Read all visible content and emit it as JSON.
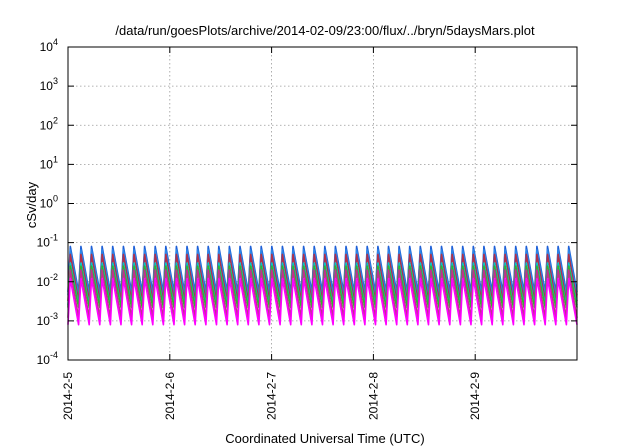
{
  "chart_data": {
    "type": "line",
    "title": "/data/run/goesPlots/archive/2014-02-09/23:00/flux/../bryn/5daysMars.plot",
    "xlabel": "Coordinated Universal Time (UTC)",
    "ylabel": "cSv/day",
    "y_scale": "log",
    "ylim": [
      0.0001,
      10000
    ],
    "y_ticks": [
      {
        "base": "10",
        "exp": "-4"
      },
      {
        "base": "10",
        "exp": "-3"
      },
      {
        "base": "10",
        "exp": "-2"
      },
      {
        "base": "10",
        "exp": "-1"
      },
      {
        "base": "10",
        "exp": "0"
      },
      {
        "base": "10",
        "exp": "1"
      },
      {
        "base": "10",
        "exp": "2"
      },
      {
        "base": "10",
        "exp": "3"
      },
      {
        "base": "10",
        "exp": "4"
      }
    ],
    "x_range_days": [
      "2014-2-5",
      "2014-2-10"
    ],
    "x_ticks": [
      "2014-2-5",
      "2014-2-6",
      "2014-2-7",
      "2014-2-8",
      "2014-2-9"
    ],
    "grid": true,
    "legend": "none",
    "cycles_per_day": 9.6,
    "series": [
      {
        "color": "#1f5fd6",
        "peak": 0.08,
        "trough": 0.0055
      },
      {
        "color": "#2a86e8",
        "peak": 0.065,
        "trough": 0.0045
      },
      {
        "color": "#b0304a",
        "peak": 0.05,
        "trough": 0.0032
      },
      {
        "color": "#00c8c8",
        "peak": 0.03,
        "trough": 0.0025
      },
      {
        "color": "#2db82d",
        "peak": 0.025,
        "trough": 0.0022
      },
      {
        "color": "#c03090",
        "peak": 0.02,
        "trough": 0.0012
      },
      {
        "color": "#ff00ff",
        "peak": 0.012,
        "trough": 0.0008
      }
    ]
  }
}
